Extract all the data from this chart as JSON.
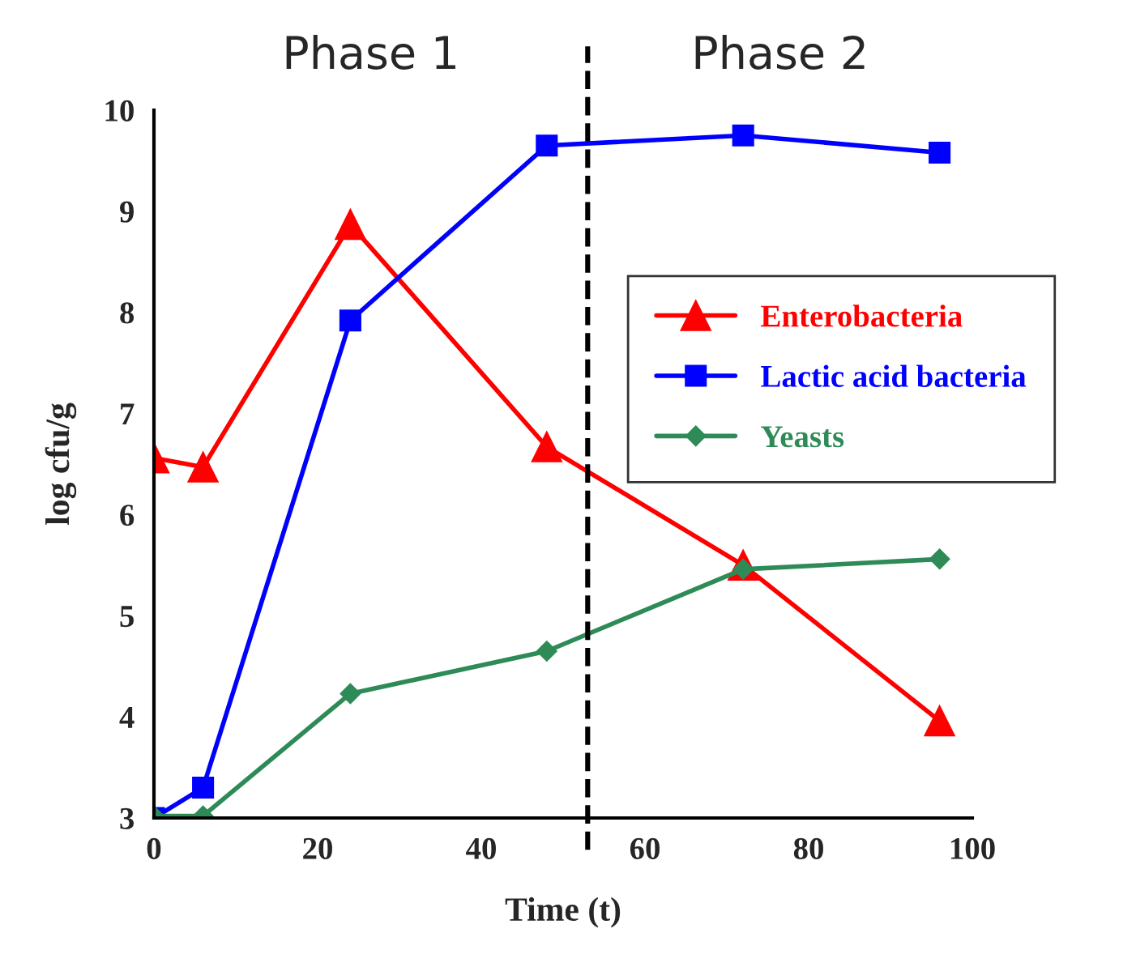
{
  "chart_data": {
    "type": "line",
    "xlabel": "Time (t)",
    "ylabel": "log cfu/g",
    "annotations": [
      "Phase 1",
      "Phase 2"
    ],
    "x": [
      0,
      6,
      24,
      48,
      72,
      96
    ],
    "series": [
      {
        "name": "Enterobacteria",
        "color": "#ff0000",
        "marker": "triangle",
        "values": [
          6.56,
          6.47,
          8.87,
          6.67,
          5.5,
          3.96
        ]
      },
      {
        "name": "Lactic acid bacteria",
        "color": "#0000ff",
        "marker": "square",
        "values": [
          3.0,
          3.3,
          7.92,
          9.65,
          9.75,
          9.58
        ]
      },
      {
        "name": "Yeasts",
        "color": "#2e8b57",
        "marker": "diamond",
        "values": [
          3.02,
          3.02,
          4.23,
          4.65,
          5.46,
          5.56
        ]
      }
    ],
    "xlim": [
      0,
      100
    ],
    "xticks": [
      0,
      20,
      40,
      60,
      80,
      100
    ],
    "ylim": [
      3,
      10
    ],
    "yticks": [
      3,
      4,
      5,
      6,
      7,
      8,
      9,
      10
    ],
    "ref_lines": [
      {
        "axis": "x",
        "value": 53,
        "color": "#000000",
        "line_style": "dashed"
      }
    ],
    "grid": false,
    "legend": "right",
    "line_style": "solid"
  }
}
